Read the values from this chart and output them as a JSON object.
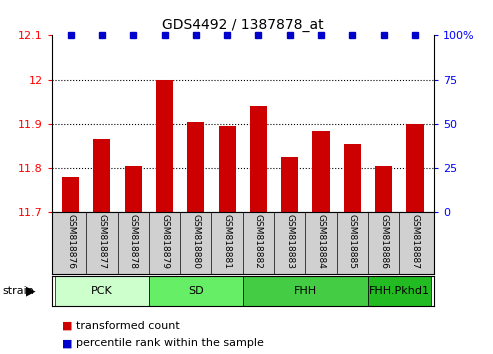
{
  "title": "GDS4492 / 1387878_at",
  "samples": [
    "GSM818876",
    "GSM818877",
    "GSM818878",
    "GSM818879",
    "GSM818880",
    "GSM818881",
    "GSM818882",
    "GSM818883",
    "GSM818884",
    "GSM818885",
    "GSM818886",
    "GSM818887"
  ],
  "transformed_count": [
    11.78,
    11.865,
    11.805,
    12.0,
    11.905,
    11.895,
    11.94,
    11.825,
    11.885,
    11.855,
    11.805,
    11.9
  ],
  "percentile_rank": [
    100,
    100,
    100,
    100,
    100,
    100,
    100,
    100,
    100,
    100,
    100,
    100
  ],
  "ylim": [
    11.7,
    12.1
  ],
  "y_left_ticks": [
    11.7,
    11.8,
    11.9,
    12.0,
    12.1
  ],
  "y_right_ticks": [
    0,
    25,
    50,
    75,
    100
  ],
  "ytick_labels_left": [
    "11.7",
    "11.8",
    "11.9",
    "12",
    "12.1"
  ],
  "ytick_labels_right": [
    "0",
    "25",
    "50",
    "75",
    "100%"
  ],
  "bar_color": "#cc0000",
  "dot_color": "#0000cc",
  "strain_groups": [
    {
      "label": "PCK",
      "start": 0,
      "end": 2,
      "color": "#ccffcc"
    },
    {
      "label": "SD",
      "start": 3,
      "end": 5,
      "color": "#66ee66"
    },
    {
      "label": "FHH",
      "start": 6,
      "end": 9,
      "color": "#44cc44"
    },
    {
      "label": "FHH.Pkhd1",
      "start": 10,
      "end": 11,
      "color": "#22bb22"
    }
  ],
  "xlabel_strain": "strain",
  "legend_tc": "transformed count",
  "legend_pr": "percentile rank within the sample",
  "bg_color": "#ffffff",
  "label_bg": "#d0d0d0"
}
